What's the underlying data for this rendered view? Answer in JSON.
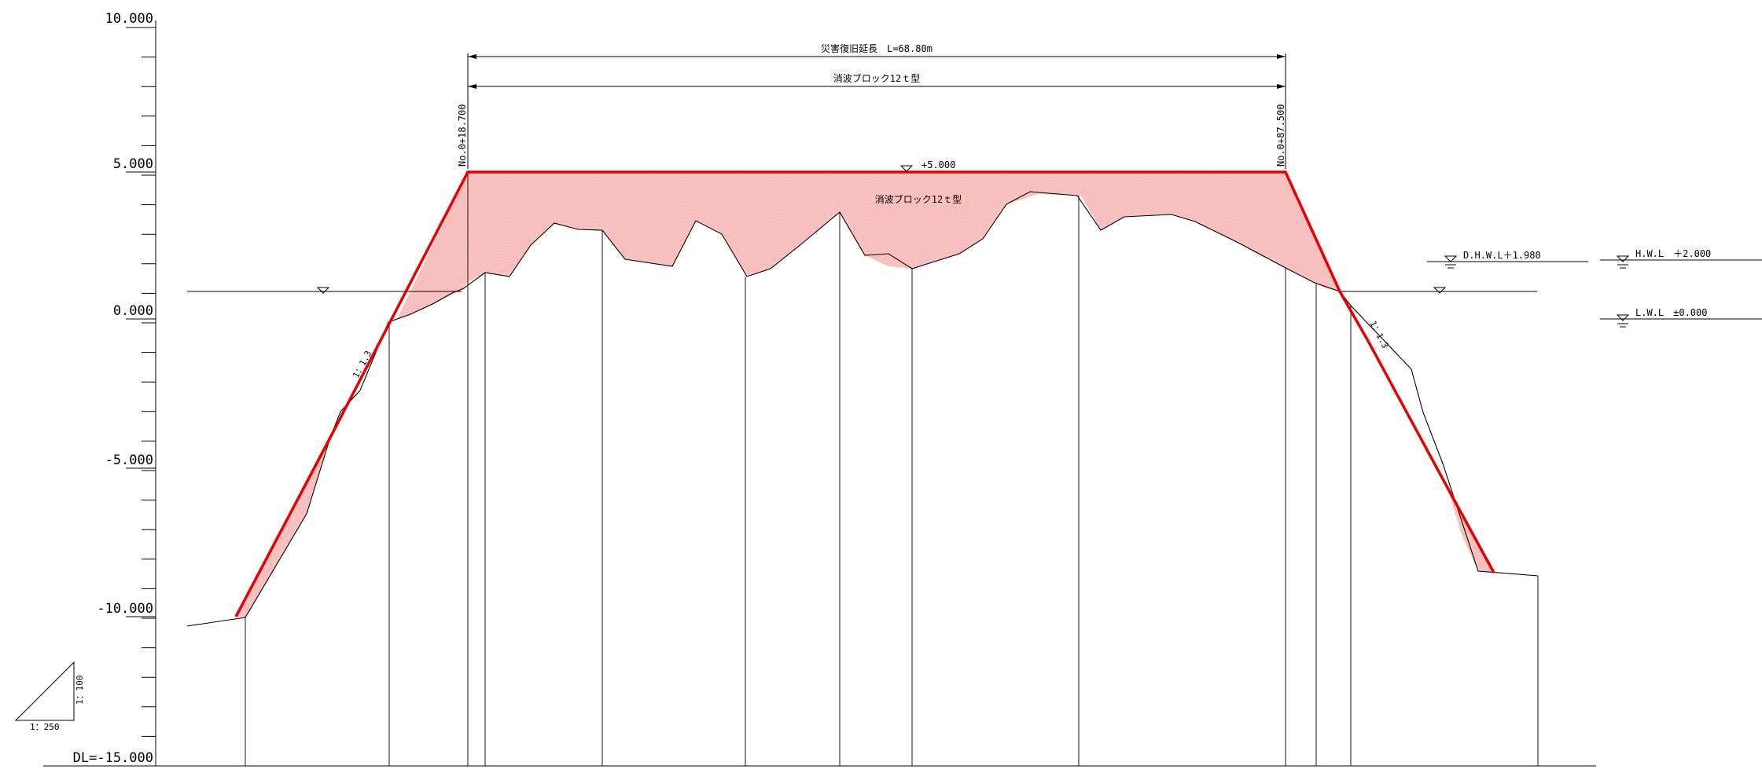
{
  "axis": {
    "ticks": [
      {
        "value": 10,
        "label": "10.000"
      },
      {
        "value": 5,
        "label": "5.000"
      },
      {
        "value": 0,
        "label": "0.000"
      },
      {
        "value": -5,
        "label": "-5.000"
      },
      {
        "value": -10,
        "label": "-10.000"
      }
    ],
    "datum_label": "DL=-15.000",
    "min": -15,
    "max": 10,
    "minor_step": 1
  },
  "scale": {
    "horizontal": "1：250",
    "vertical": "1：100"
  },
  "dimensions": {
    "restoration_length": "災害復旧延長　L=68.80m",
    "block_type": "消波ブロック12ｔ型"
  },
  "stations": {
    "start": "No.0+18.700",
    "end": "No.0+87.500"
  },
  "crest": {
    "elevation_label": "+5.000",
    "fill_label": "消波ブロック12ｔ型"
  },
  "slopes": {
    "left": "1：1.3",
    "right": "1：1.3"
  },
  "water_levels": {
    "dhwl": "D.H.W.L＋1.980",
    "hwl": "H.W.L　＋2.000",
    "lwl": "L.W.L　±0.000"
  },
  "colors": {
    "design_line": "#e60000",
    "fill": "#ffc0c0",
    "ink": "#000000"
  }
}
